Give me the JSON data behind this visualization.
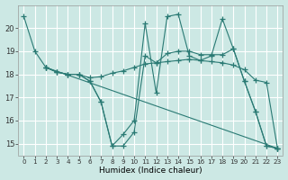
{
  "xlabel": "Humidex (Indice chaleur)",
  "background_color": "#cce8e4",
  "grid_color": "#ffffff",
  "line_color": "#2a7a74",
  "xlim": [
    -0.5,
    23.5
  ],
  "ylim": [
    14.5,
    21.0
  ],
  "yticks": [
    15,
    16,
    17,
    18,
    19,
    20
  ],
  "xticks": [
    0,
    1,
    2,
    3,
    4,
    5,
    6,
    7,
    8,
    9,
    10,
    11,
    12,
    13,
    14,
    15,
    16,
    17,
    18,
    19,
    20,
    21,
    22,
    23
  ],
  "series": [
    {
      "x": [
        0,
        1,
        2,
        3,
        4,
        5,
        6,
        7,
        8,
        9,
        10,
        11,
        12,
        13,
        14,
        15,
        16,
        17,
        18,
        19,
        20,
        21,
        22,
        23
      ],
      "y": [
        20.5,
        19.0,
        18.3,
        18.1,
        18.0,
        18.0,
        17.7,
        16.8,
        14.9,
        15.4,
        16.0,
        20.2,
        17.2,
        20.5,
        20.6,
        18.8,
        18.6,
        18.8,
        20.4,
        19.1,
        17.7,
        16.4,
        14.9,
        14.8
      ]
    },
    {
      "x": [
        2,
        3,
        4,
        5,
        6,
        7,
        8,
        9,
        10,
        11,
        12,
        13,
        14,
        15,
        16,
        17,
        18,
        19,
        20,
        21,
        22,
        23
      ],
      "y": [
        18.3,
        18.1,
        18.0,
        18.0,
        17.7,
        16.8,
        14.9,
        14.9,
        15.5,
        18.8,
        18.5,
        18.9,
        19.0,
        19.0,
        18.85,
        18.85,
        18.85,
        19.1,
        17.7,
        16.4,
        14.9,
        14.8
      ]
    },
    {
      "x": [
        2,
        3,
        4,
        5,
        6,
        7,
        8,
        9,
        10,
        11,
        12,
        13,
        14,
        15,
        16,
        17,
        18,
        19,
        20,
        21,
        22,
        23
      ],
      "y": [
        18.3,
        18.1,
        18.0,
        18.0,
        17.85,
        17.9,
        18.05,
        18.15,
        18.3,
        18.45,
        18.5,
        18.55,
        18.6,
        18.65,
        18.6,
        18.55,
        18.5,
        18.4,
        18.2,
        17.75,
        17.65,
        14.8
      ]
    },
    {
      "x": [
        2,
        23
      ],
      "y": [
        18.3,
        14.8
      ]
    }
  ]
}
